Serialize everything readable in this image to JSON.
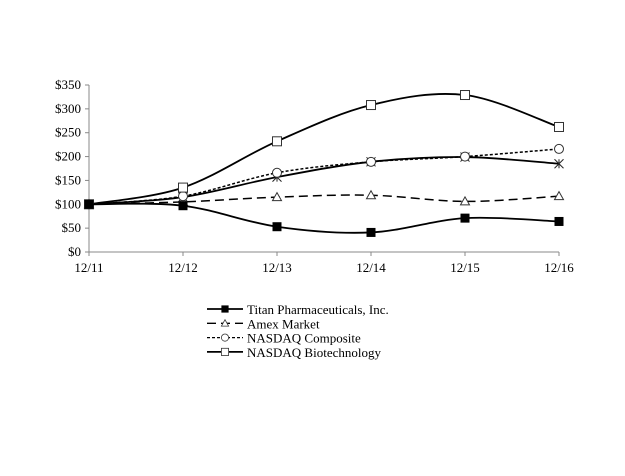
{
  "chart_data": {
    "type": "line",
    "title": "",
    "xlabel": "",
    "ylabel": "",
    "categories": [
      "12/11",
      "12/12",
      "12/13",
      "12/14",
      "12/15",
      "12/16"
    ],
    "yticks": [
      "$0",
      "$50",
      "$100",
      "$150",
      "$200",
      "$250",
      "$300",
      "$350"
    ],
    "ylim": [
      0,
      350
    ],
    "grid": false,
    "legend_position": "bottom-center",
    "series": [
      {
        "name": "Titan Pharmaceuticals, Inc.",
        "marker": "filled-square",
        "dash": "solid",
        "values": [
          100,
          97,
          53,
          41,
          71,
          64
        ]
      },
      {
        "name": "Amex Market",
        "marker": "triangle",
        "dash": "long-dash",
        "values": [
          100,
          105,
          115,
          119,
          106,
          117
        ]
      },
      {
        "name": "NASDAQ Composite",
        "marker": "circle",
        "dash": "short-dash",
        "values": [
          100,
          117,
          166,
          189,
          200,
          216
        ]
      },
      {
        "name": "NASDAQ Biotechnology",
        "marker": "square",
        "dash": "solid",
        "values": [
          100,
          135,
          232,
          308,
          329,
          262
        ]
      },
      {
        "name": "",
        "marker": "asterisk",
        "dash": "solid",
        "values": [
          100,
          115,
          157,
          189,
          199,
          185
        ]
      }
    ]
  }
}
